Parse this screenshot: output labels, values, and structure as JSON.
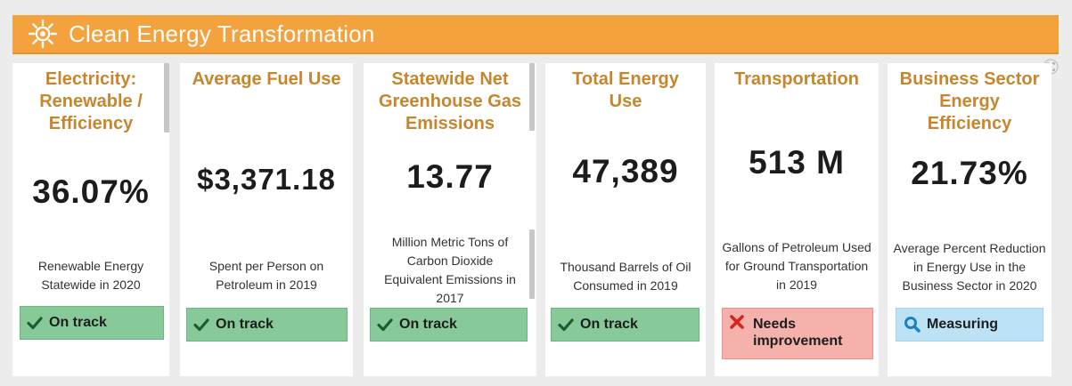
{
  "header": {
    "title": "Clean Energy Transformation",
    "icon": "sun-icon"
  },
  "colors": {
    "header": "#f3a23d",
    "title": "#c8862c",
    "on_track": "#88c999",
    "needs_improvement": "#f5b1ab",
    "measuring": "#bee2f5"
  },
  "cards": [
    {
      "title": "Electricity: Renewable / Efficiency",
      "value": "36.07%",
      "description": "Renewable Energy Statewide in 2020",
      "status": "On track"
    },
    {
      "title": "Average Fuel Use",
      "value": "$3,371.18",
      "description": "Spent per Person on Petroleum in 2019",
      "status": "On track"
    },
    {
      "title": "Statewide Net Greenhouse Gas Emissions",
      "value": "13.77",
      "description": "Million Metric Tons of Carbon Dioxide Equivalent Emissions in 2017",
      "status": "On track"
    },
    {
      "title": "Total Energy Use",
      "value": "47,389",
      "description": "Thousand Barrels of Oil Consumed in 2019",
      "status": "On track"
    },
    {
      "title": "Transportation",
      "value": "513 M",
      "description": "Gallons of Petroleum Used for Ground Transportation in 2019",
      "status": "Needs improvement"
    },
    {
      "title": "Business Sector Energy Efficiency",
      "value": "21.73%",
      "description": "Average Percent Reduction in Energy Use in the Business Sector in 2020",
      "status": "Measuring"
    }
  ]
}
